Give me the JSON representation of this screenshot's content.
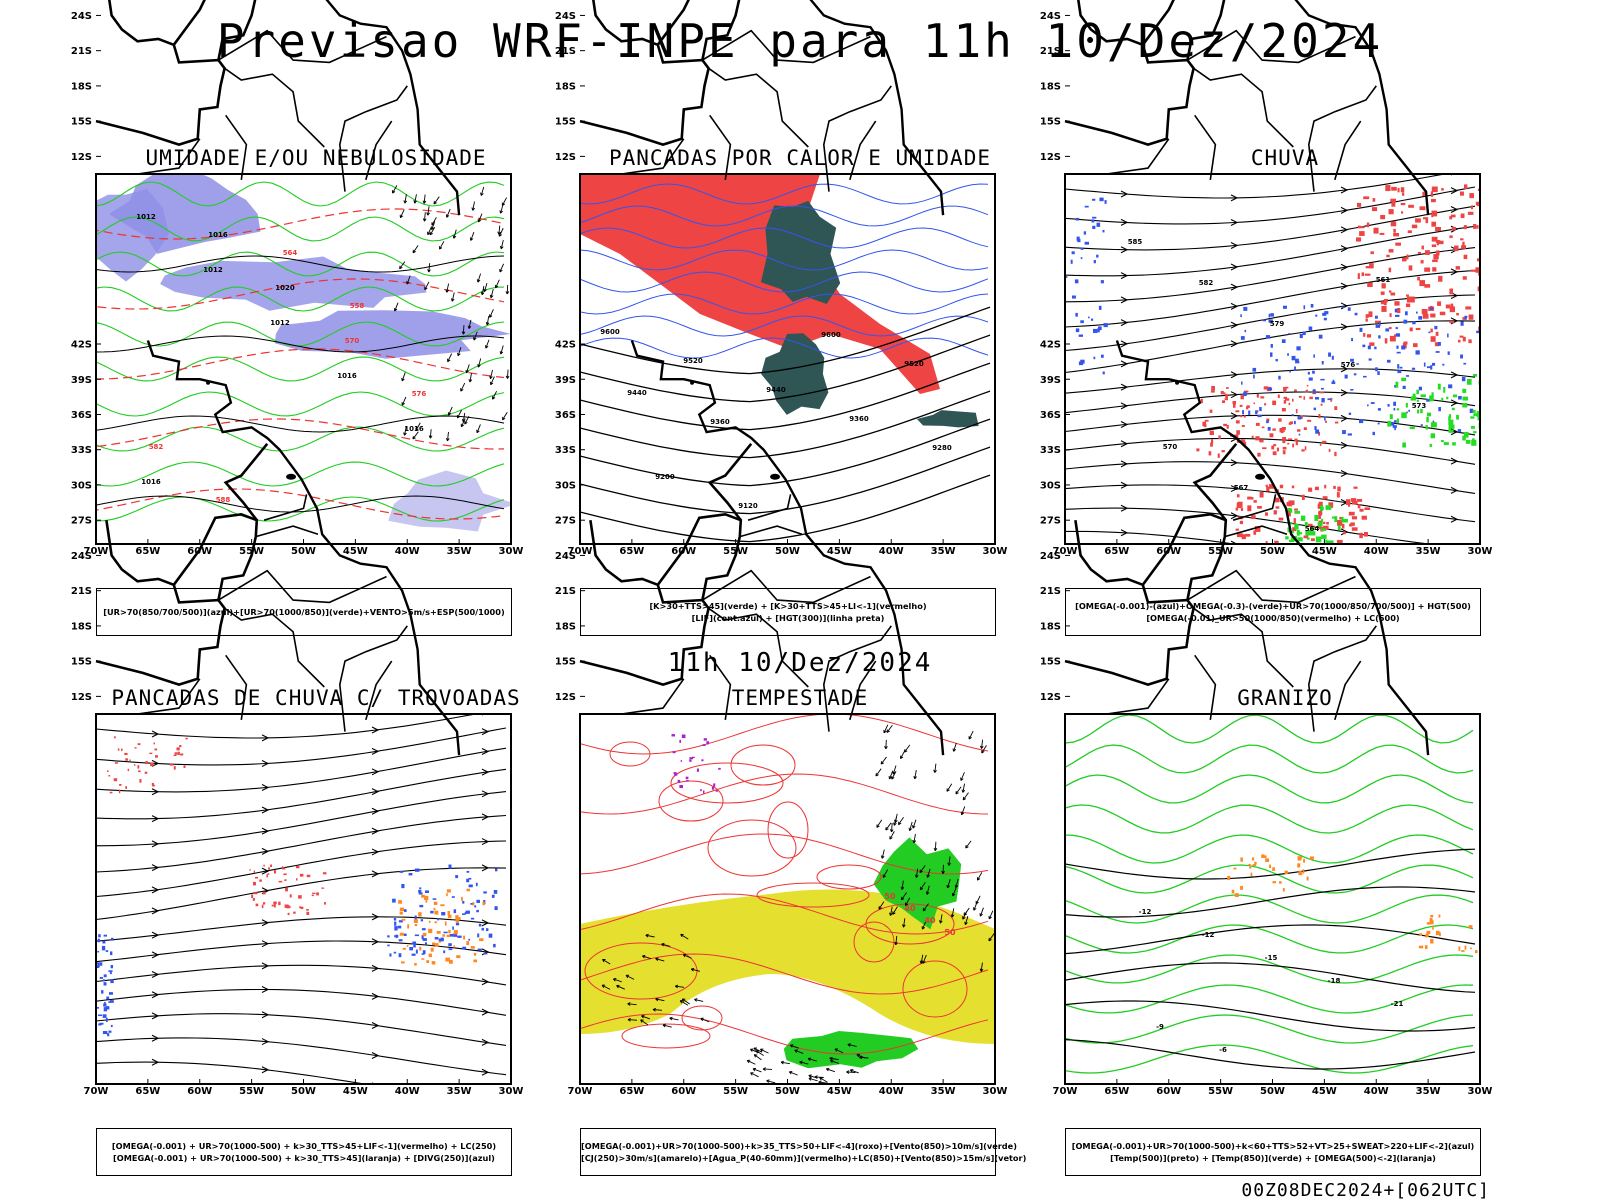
{
  "title": "Previsao WRF-INPE  para 11h 10/Dez/2024",
  "mid_title": "11h 10/Dez/2024",
  "footer": "00Z08DEC2024+[062UTC]",
  "axes": {
    "lat_labels": [
      "12S",
      "15S",
      "18S",
      "21S",
      "24S",
      "27S",
      "30S",
      "33S",
      "36S",
      "39S",
      "42S"
    ],
    "lon_labels": [
      "70W",
      "65W",
      "60W",
      "55W",
      "50W",
      "45W",
      "40W",
      "35W",
      "30W"
    ]
  },
  "panels": [
    {
      "id": "umidade",
      "title": "UMIDADE E/OU NEBULOSIDADE",
      "legend": [
        "[UR>70(850/700/500)](azul)+[UR>70(1000/850)](verde)+VENTO>5m/s+ESP(500/1000)"
      ],
      "contour_labels": [
        "1012",
        "1012",
        "1012",
        "1016",
        "1016",
        "1016",
        "1016",
        "1020",
        "570",
        "576",
        "582",
        "588",
        "564",
        "558"
      ]
    },
    {
      "id": "pancadas_calor",
      "title": "PANCADAS POR CALOR E UMIDADE",
      "legend": [
        "[K>30+TTS>45](verde) + [K>30+TTS>45+LI<-1](vermelho)",
        "[LIF](cont.azul) + [HGT(300)](linha preta)"
      ],
      "contour_labels": [
        "9600",
        "9520",
        "9440",
        "9360",
        "9280",
        "9200",
        "9120",
        "9600",
        "9520",
        "9440",
        "9360"
      ]
    },
    {
      "id": "chuva",
      "title": "CHUVA",
      "legend": [
        "[OMEGA(-0.001)-(azul)+OMEGA(-0.3)-(verde)+UR>70(1000/850/700/500)] + HGT(500)",
        "[OMEGA(-0.01)_UR>50(1000/850)(vermelho) + LC(500)"
      ],
      "contour_labels": [
        "585",
        "582",
        "579",
        "576",
        "573",
        "570",
        "567",
        "564",
        "561"
      ]
    },
    {
      "id": "trovoadas",
      "title": "PANCADAS DE CHUVA C/ TROVOADAS",
      "legend": [
        "[OMEGA(-0.001) + UR>70(1000-500) + k>30_TTS>45+LIF<-1](vermelho) + LC(250)",
        "[OMEGA(-0.001) + UR>70(1000-500) + k>30_TTS>45](laranja) + [DIVG(250)](azul)"
      ],
      "contour_labels": []
    },
    {
      "id": "tempestade",
      "title": "TEMPESTADE",
      "legend": [
        "[OMEGA(-0.001)+UR>70(1000-500)+k>35_TTS>50+LIF<-4](roxo)+[Vento(850)>10m/s](verde)",
        "[CJ(250)>30m/s](amarelo)+[Agua_P(40-60mm)](vermelho)+LC(850)+[Vento(850)>15m/s](vetor)"
      ],
      "contour_labels": [
        "50",
        "40",
        "40",
        "50"
      ]
    },
    {
      "id": "granizo",
      "title": "GRANIZO",
      "legend": [
        "[OMEGA(-0.001)+UR>70(1000-500)+k<60+TTS>52+VT>25+SWEAT>220+LIF<-2](azul)",
        "[Temp(500)](preto) + [Temp(850)](verde) + [OMEGA(500)<-2](laranja)"
      ],
      "contour_labels": [
        "-12",
        "-12",
        "-15",
        "-18",
        "-21",
        "-9",
        "-6"
      ]
    }
  ],
  "colors": {
    "frame": "#000000",
    "humidity_blue": "#8f8fe6",
    "humidity_green": "#22cc22",
    "red_contour": "#ee3333",
    "instability_red": "#ee4444",
    "dark_teal": "#2f5555",
    "lif_blue": "#3355ee",
    "rain_green": "#22dd22",
    "orange": "#ff8822",
    "jet_yellow": "#e5e030",
    "purple": "#aa22cc"
  }
}
